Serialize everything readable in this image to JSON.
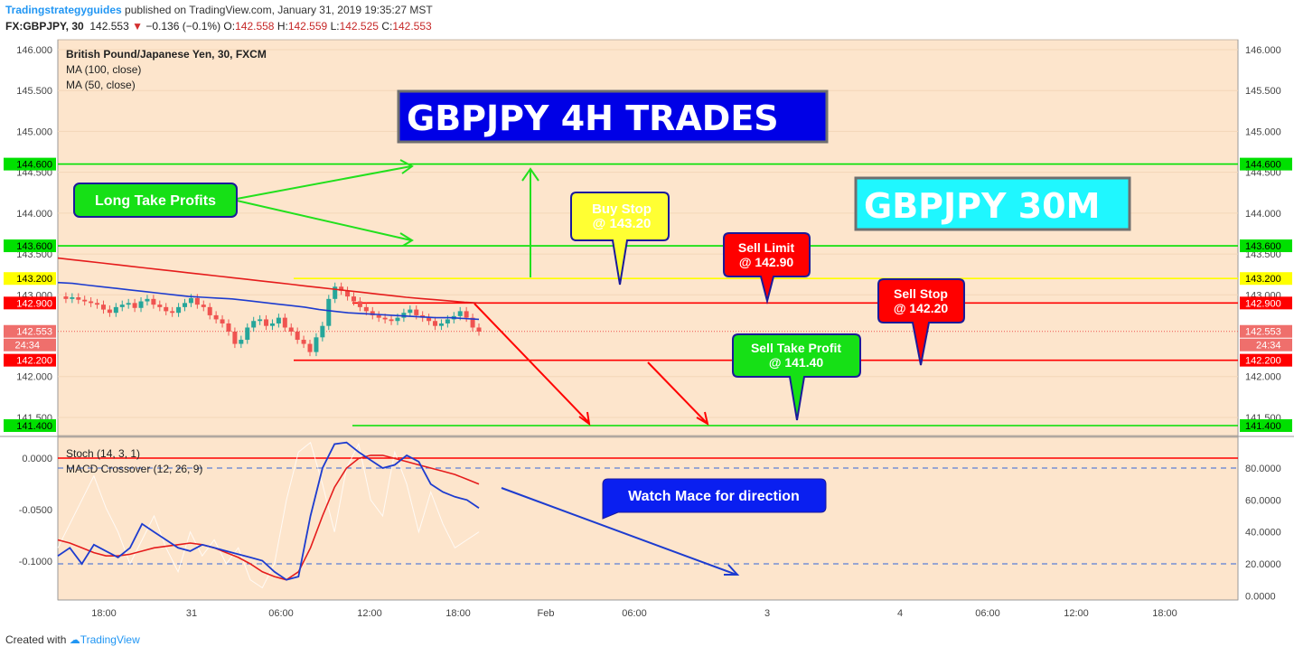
{
  "header": {
    "brand": "Tradingstrategyguides",
    "published": " published on TradingView.com, January 31, 2019 19:35:27 MST",
    "symbol": "FX:GBPJPY, 30",
    "price": "142.553",
    "change": "−0.136 (−0.1%)",
    "o_label": "O:",
    "o": "142.558",
    "h_label": "H:",
    "h": "142.559",
    "l_label": "L:",
    "l": "142.525",
    "c_label": "C:",
    "c": "142.553"
  },
  "footer": {
    "created": "Created with",
    "brand": "TradingView"
  },
  "colors": {
    "background": "#fde5cc",
    "up": "#26a69a",
    "down": "#ef5350",
    "ma100": "#e51c1c",
    "ma50": "#1d3ccf",
    "green": "#00e000",
    "red": "#ff0000",
    "yellow": "#ffff00"
  },
  "chart_data": [
    {
      "type": "candlestick",
      "title": "British Pound/Japanese Yen, 30, FXCM",
      "legend": [
        "MA (100, close)",
        "MA (50, close)"
      ],
      "ylim": [
        141.3,
        146.1
      ],
      "y_ticks": [
        "146.000",
        "145.500",
        "145.000",
        "144.500",
        "144.000",
        "143.500",
        "143.000",
        "142.000",
        "141.500"
      ],
      "x_ticks": [
        "18:00",
        "31",
        "06:00",
        "12:00",
        "18:00",
        "Feb",
        "06:00",
        "3",
        "4",
        "06:00",
        "12:00",
        "18:00"
      ],
      "levels": [
        {
          "label": "144.600",
          "value": 144.6,
          "color": "#00e000"
        },
        {
          "label": "143.600",
          "value": 143.6,
          "color": "#00e000"
        },
        {
          "label": "143.200",
          "value": 143.2,
          "color": "#ffff00"
        },
        {
          "label": "142.900",
          "value": 142.9,
          "color": "#ff0000"
        },
        {
          "label": "142.553",
          "value": 142.553,
          "color": "#ef5350"
        },
        {
          "label": "142.200",
          "value": 142.2,
          "color": "#ff0000"
        },
        {
          "label": "141.400",
          "value": 141.4,
          "color": "#00e000"
        }
      ],
      "countdown": "24:34",
      "closes": [
        142.98,
        142.95,
        142.97,
        142.94,
        142.92,
        142.9,
        142.88,
        142.82,
        142.78,
        142.85,
        142.88,
        142.9,
        142.84,
        142.92,
        142.95,
        142.88,
        142.85,
        142.8,
        142.78,
        142.85,
        142.9,
        142.96,
        142.88,
        142.85,
        142.75,
        142.7,
        142.65,
        142.55,
        142.4,
        142.45,
        142.6,
        142.68,
        142.7,
        142.62,
        142.65,
        142.72,
        142.6,
        142.55,
        142.45,
        142.4,
        142.3,
        142.48,
        142.62,
        142.95,
        143.1,
        143.05,
        142.98,
        142.92,
        142.85,
        142.8,
        142.75,
        142.72,
        142.7,
        142.68,
        142.72,
        142.78,
        142.82,
        142.75,
        142.72,
        142.68,
        142.62,
        142.65,
        142.7,
        142.74,
        142.8,
        142.72,
        142.6,
        142.55
      ],
      "ma100": [
        143.45,
        143.43,
        143.41,
        143.39,
        143.37,
        143.35,
        143.33,
        143.31,
        143.29,
        143.27,
        143.25,
        143.23,
        143.21,
        143.19,
        143.17,
        143.15,
        143.13,
        143.11,
        143.09,
        143.07,
        143.05,
        143.03,
        143.01,
        142.99,
        142.97,
        142.955,
        142.94,
        142.925,
        142.91,
        142.9
      ],
      "ma50": [
        143.15,
        143.14,
        143.12,
        143.1,
        143.08,
        143.06,
        143.04,
        143.02,
        143.0,
        142.98,
        142.97,
        142.96,
        142.95,
        142.93,
        142.91,
        142.89,
        142.87,
        142.85,
        142.82,
        142.8,
        142.78,
        142.77,
        142.76,
        142.75,
        142.74,
        142.73,
        142.72,
        142.72,
        142.71,
        142.7
      ]
    },
    {
      "type": "line",
      "legend": [
        "Stoch (14, 3, 1)",
        "MACD Crossover (12, 26, 9)"
      ],
      "left_ticks": [
        "0.0000",
        "-0.0500",
        "-0.1000"
      ],
      "right_ticks": [
        "80.0000",
        "60.0000",
        "40.0000",
        "20.0000",
        "0.0000"
      ],
      "ylim_right": [
        0,
        100
      ],
      "stoch": [
        25,
        30,
        20,
        32,
        28,
        24,
        30,
        45,
        40,
        35,
        30,
        28,
        32,
        30,
        28,
        26,
        24,
        22,
        15,
        10,
        12,
        50,
        80,
        95,
        96,
        90,
        85,
        80,
        82,
        88,
        84,
        70,
        65,
        62,
        60,
        55
      ],
      "signal": [
        35,
        33,
        30,
        27,
        25,
        25,
        26,
        28,
        30,
        31,
        32,
        33,
        32,
        30,
        27,
        24,
        20,
        15,
        12,
        10,
        15,
        30,
        50,
        68,
        80,
        86,
        88,
        88,
        86,
        84,
        82,
        80,
        78,
        76,
        73,
        70
      ],
      "raw": [
        30,
        45,
        60,
        75,
        55,
        40,
        20,
        35,
        50,
        30,
        15,
        40,
        25,
        35,
        20,
        30,
        10,
        5,
        20,
        60,
        90,
        96,
        70,
        40,
        80,
        95,
        60,
        50,
        90,
        70,
        40,
        65,
        45,
        30,
        35,
        40
      ]
    }
  ],
  "annotations": {
    "title_4h": "GBPJPY 4H TRADES",
    "title_30m": "GBPJPY 30M",
    "long_tp": "Long Take Profits",
    "buy_stop_1": "Buy Stop",
    "buy_stop_2": "@ 143.20",
    "sell_limit_1": "Sell Limit",
    "sell_limit_2": "@ 142.90",
    "sell_stop_1": "Sell Stop",
    "sell_stop_2": "@ 142.20",
    "sell_tp_1": "Sell Take Profit",
    "sell_tp_2": "@ 141.40",
    "watch_macd": "Watch Mace for direction"
  }
}
